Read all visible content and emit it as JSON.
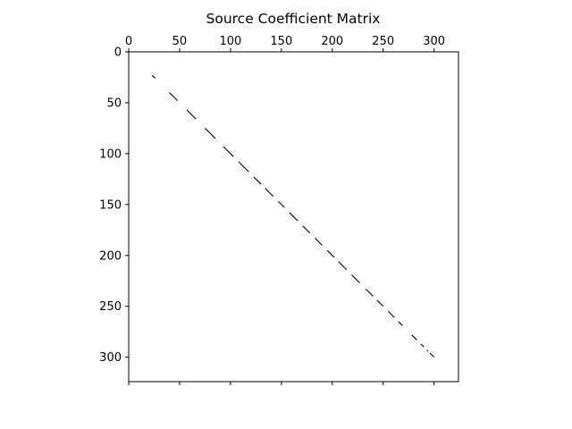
{
  "chart_data": {
    "type": "spy",
    "title": "Source Coefficient Matrix",
    "xlabel": "",
    "ylabel": "",
    "xlim": [
      0,
      324
    ],
    "ylim": [
      324,
      0
    ],
    "x_ticks": [
      0,
      50,
      100,
      150,
      200,
      250,
      300
    ],
    "y_ticks": [
      0,
      50,
      100,
      150,
      200,
      250,
      300
    ],
    "x_tick_position": "top",
    "y_axis_inverted": true,
    "grid": false,
    "marker_color": "#000000",
    "nonzero_structure": "diagonal",
    "diagonal_range": [
      23,
      300
    ],
    "diagonal_segments": [
      [
        23,
        26
      ],
      [
        40,
        48
      ],
      [
        57,
        66
      ],
      [
        75,
        85
      ],
      [
        93,
        103
      ],
      [
        108,
        118
      ],
      [
        123,
        130
      ],
      [
        134,
        142
      ],
      [
        147,
        153
      ],
      [
        158,
        166
      ],
      [
        171,
        178
      ],
      [
        183,
        190
      ],
      [
        195,
        202
      ],
      [
        206,
        214
      ],
      [
        219,
        227
      ],
      [
        233,
        240
      ],
      [
        244,
        250
      ],
      [
        255,
        261
      ],
      [
        265,
        269
      ],
      [
        278,
        283
      ],
      [
        287,
        290
      ],
      [
        293,
        294
      ],
      [
        296,
        300
      ]
    ]
  }
}
